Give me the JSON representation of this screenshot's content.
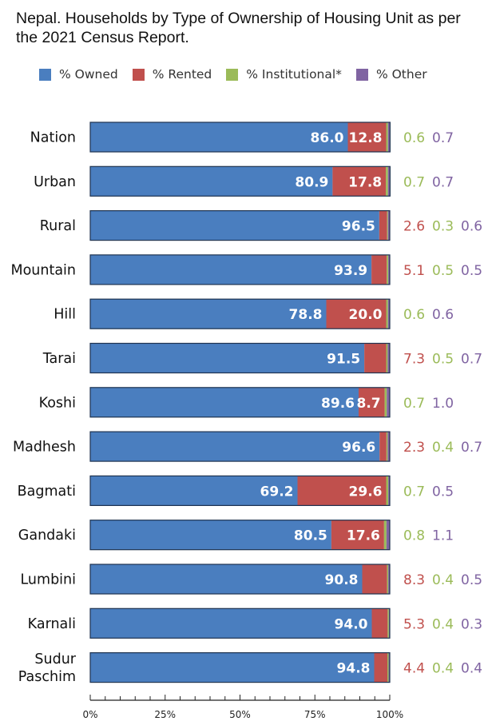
{
  "title": "Nepal. Households by Type of Ownership of Housing Unit as per the 2021 Census Report.",
  "colors": {
    "owned": "#4a7ebf",
    "rented": "#c0504d",
    "institutional": "#9bbb59",
    "other": "#8064a2"
  },
  "legend": [
    {
      "key": "owned",
      "label": "% Owned"
    },
    {
      "key": "rented",
      "label": "% Rented"
    },
    {
      "key": "institutional",
      "label": "% Institutional*"
    },
    {
      "key": "other",
      "label": "% Other"
    }
  ],
  "chart_data": {
    "type": "bar",
    "orientation": "horizontal",
    "stacked": true,
    "percent_stacked": true,
    "title": "Nepal. Households by Type of Ownership of Housing Unit as per the 2021 Census Report.",
    "categories": [
      "Nation",
      "Urban",
      "Rural",
      "Mountain",
      "Hill",
      "Tarai",
      "Koshi",
      "Madhesh",
      "Bagmati",
      "Gandaki",
      "Lumbini",
      "Karnali",
      "Sudur Paschim"
    ],
    "series": [
      {
        "name": "% Owned",
        "key": "owned",
        "values": [
          86.0,
          80.9,
          96.5,
          93.9,
          78.8,
          91.5,
          89.6,
          96.6,
          69.2,
          80.5,
          90.8,
          94.0,
          94.8
        ]
      },
      {
        "name": "% Rented",
        "key": "rented",
        "values": [
          12.8,
          17.8,
          2.6,
          5.1,
          20.0,
          7.3,
          8.7,
          2.3,
          29.6,
          17.6,
          8.3,
          5.3,
          4.4
        ]
      },
      {
        "name": "% Institutional*",
        "key": "institutional",
        "values": [
          0.6,
          0.7,
          0.3,
          0.5,
          0.6,
          0.5,
          0.7,
          0.4,
          0.7,
          0.8,
          0.4,
          0.4,
          0.4
        ]
      },
      {
        "name": "% Other",
        "key": "other",
        "values": [
          0.7,
          0.7,
          0.6,
          0.5,
          0.6,
          0.7,
          1.0,
          0.7,
          0.5,
          1.1,
          0.5,
          0.3,
          0.4
        ]
      }
    ],
    "bar_labels": [
      {
        "inside": [
          "86.0",
          "12.8"
        ],
        "outside": [
          "0.6",
          "0.7"
        ],
        "outside_keys": [
          "institutional",
          "other"
        ]
      },
      {
        "inside": [
          "80.9",
          "17.8"
        ],
        "outside": [
          "0.7",
          "0.7"
        ],
        "outside_keys": [
          "institutional",
          "other"
        ]
      },
      {
        "inside": [
          "96.5"
        ],
        "outside": [
          "2.6",
          "0.3",
          "0.6"
        ],
        "outside_keys": [
          "rented",
          "institutional",
          "other"
        ]
      },
      {
        "inside": [
          "93.9"
        ],
        "outside": [
          "5.1",
          "0.5",
          "0.5"
        ],
        "outside_keys": [
          "rented",
          "institutional",
          "other"
        ]
      },
      {
        "inside": [
          "78.8",
          "20.0"
        ],
        "outside": [
          "0.6",
          "0.6"
        ],
        "outside_keys": [
          "institutional",
          "other"
        ]
      },
      {
        "inside": [
          "91.5"
        ],
        "outside": [
          "7.3",
          "0.5",
          "0.7"
        ],
        "outside_keys": [
          "rented",
          "institutional",
          "other"
        ]
      },
      {
        "inside": [
          "89.6",
          "8.7"
        ],
        "outside": [
          "0.7",
          "1.0"
        ],
        "outside_keys": [
          "institutional",
          "other"
        ]
      },
      {
        "inside": [
          "96.6"
        ],
        "outside": [
          "2.3",
          "0.4",
          "0.7"
        ],
        "outside_keys": [
          "rented",
          "institutional",
          "other"
        ]
      },
      {
        "inside": [
          "69.2",
          "29.6"
        ],
        "outside": [
          "0.7",
          "0.5"
        ],
        "outside_keys": [
          "institutional",
          "other"
        ]
      },
      {
        "inside": [
          "80.5",
          "17.6"
        ],
        "outside": [
          "0.8",
          "1.1"
        ],
        "outside_keys": [
          "institutional",
          "other"
        ]
      },
      {
        "inside": [
          "90.8"
        ],
        "outside": [
          "8.3",
          "0.4",
          "0.5"
        ],
        "outside_keys": [
          "rented",
          "institutional",
          "other"
        ]
      },
      {
        "inside": [
          "94.0"
        ],
        "outside": [
          "5.3",
          "0.4",
          "0.3"
        ],
        "outside_keys": [
          "rented",
          "institutional",
          "other"
        ]
      },
      {
        "inside": [
          "94.8"
        ],
        "outside": [
          "4.4",
          "0.4",
          "0.4"
        ],
        "outside_keys": [
          "rented",
          "institutional",
          "other"
        ]
      }
    ],
    "xaxis": {
      "ticks": [
        "0%",
        "25%",
        "50%",
        "75%",
        "100%"
      ],
      "tick_values": [
        0,
        25,
        50,
        75,
        100
      ],
      "xlim": [
        0,
        100
      ]
    },
    "xlabel": "",
    "ylabel": "",
    "grid": false,
    "legend_position": "top"
  }
}
